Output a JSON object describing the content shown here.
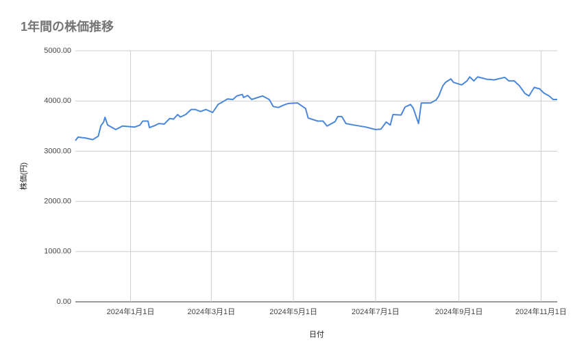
{
  "chart_data": {
    "type": "line",
    "title": "1年間の株価推移",
    "x_label": "日付",
    "y_label": "株価(円)",
    "x": [
      "2023-11-21",
      "2023-11-23",
      "2023-11-29",
      "2023-12-04",
      "2023-12-08",
      "2023-12-10",
      "2023-12-12",
      "2023-12-13",
      "2023-12-15",
      "2023-12-21",
      "2023-12-26",
      "2024-01-04",
      "2024-01-08",
      "2024-01-10",
      "2024-01-14",
      "2024-01-15",
      "2024-01-19",
      "2024-01-22",
      "2024-01-26",
      "2024-01-30",
      "2024-02-02",
      "2024-02-05",
      "2024-02-07",
      "2024-02-11",
      "2024-02-15",
      "2024-02-18",
      "2024-02-22",
      "2024-02-26",
      "2024-03-02",
      "2024-03-06",
      "2024-03-10",
      "2024-03-13",
      "2024-03-17",
      "2024-03-20",
      "2024-03-24",
      "2024-03-25",
      "2024-03-28",
      "2024-03-31",
      "2024-04-08",
      "2024-04-13",
      "2024-04-16",
      "2024-04-20",
      "2024-04-23",
      "2024-04-27",
      "2024-05-04",
      "2024-05-10",
      "2024-05-12",
      "2024-05-19",
      "2024-05-23",
      "2024-05-26",
      "2024-06-01",
      "2024-06-03",
      "2024-06-06",
      "2024-06-09",
      "2024-06-15",
      "2024-06-24",
      "2024-07-01",
      "2024-07-05",
      "2024-07-09",
      "2024-07-12",
      "2024-07-14",
      "2024-07-20",
      "2024-07-23",
      "2024-07-27",
      "2024-07-29",
      "2024-08-02",
      "2024-08-04",
      "2024-08-11",
      "2024-08-15",
      "2024-08-17",
      "2024-08-20",
      "2024-08-22",
      "2024-08-26",
      "2024-08-28",
      "2024-09-03",
      "2024-09-07",
      "2024-09-09",
      "2024-09-12",
      "2024-09-15",
      "2024-09-22",
      "2024-09-24",
      "2024-09-27",
      "2024-10-05",
      "2024-10-08",
      "2024-10-12",
      "2024-10-16",
      "2024-10-20",
      "2024-10-23",
      "2024-10-27",
      "2024-10-31",
      "2024-11-03",
      "2024-11-07",
      "2024-11-10",
      "2024-11-13"
    ],
    "series": [
      {
        "name": "株価",
        "color": "#4a86d8",
        "values": [
          3210,
          3280,
          3260,
          3230,
          3300,
          3510,
          3580,
          3675,
          3520,
          3430,
          3500,
          3480,
          3520,
          3600,
          3600,
          3470,
          3510,
          3550,
          3540,
          3650,
          3640,
          3730,
          3680,
          3730,
          3830,
          3830,
          3790,
          3830,
          3770,
          3930,
          3990,
          4040,
          4030,
          4100,
          4130,
          4070,
          4110,
          4030,
          4100,
          4030,
          3890,
          3870,
          3910,
          3950,
          3960,
          3850,
          3660,
          3600,
          3600,
          3500,
          3590,
          3690,
          3690,
          3550,
          3520,
          3480,
          3430,
          3440,
          3580,
          3520,
          3730,
          3720,
          3880,
          3930,
          3860,
          3550,
          3960,
          3960,
          4020,
          4100,
          4300,
          4370,
          4440,
          4370,
          4320,
          4400,
          4480,
          4400,
          4480,
          4430,
          4430,
          4420,
          4470,
          4400,
          4400,
          4300,
          4150,
          4100,
          4270,
          4240,
          4160,
          4100,
          4030,
          4030
        ]
      }
    ],
    "xlim": [
      "2023-11-21",
      "2024-11-13"
    ],
    "xticks": [
      {
        "value": "2024-01-01",
        "label": "2024年1月1日"
      },
      {
        "value": "2024-03-01",
        "label": "2024年3月1日"
      },
      {
        "value": "2024-05-01",
        "label": "2024年5月1日"
      },
      {
        "value": "2024-07-01",
        "label": "2024年7月1日"
      },
      {
        "value": "2024-09-01",
        "label": "2024年9月1日"
      },
      {
        "value": "2024-11-01",
        "label": "2024年11月1日"
      }
    ],
    "ylim": [
      0,
      5000
    ],
    "yticks": [
      {
        "value": 0,
        "label": "0.00"
      },
      {
        "value": 1000,
        "label": "1000.00"
      },
      {
        "value": 2000,
        "label": "2000.00"
      },
      {
        "value": 3000,
        "label": "3000.00"
      },
      {
        "value": 4000,
        "label": "4000.00"
      },
      {
        "value": 5000,
        "label": "5000.00"
      }
    ],
    "grid": true
  }
}
